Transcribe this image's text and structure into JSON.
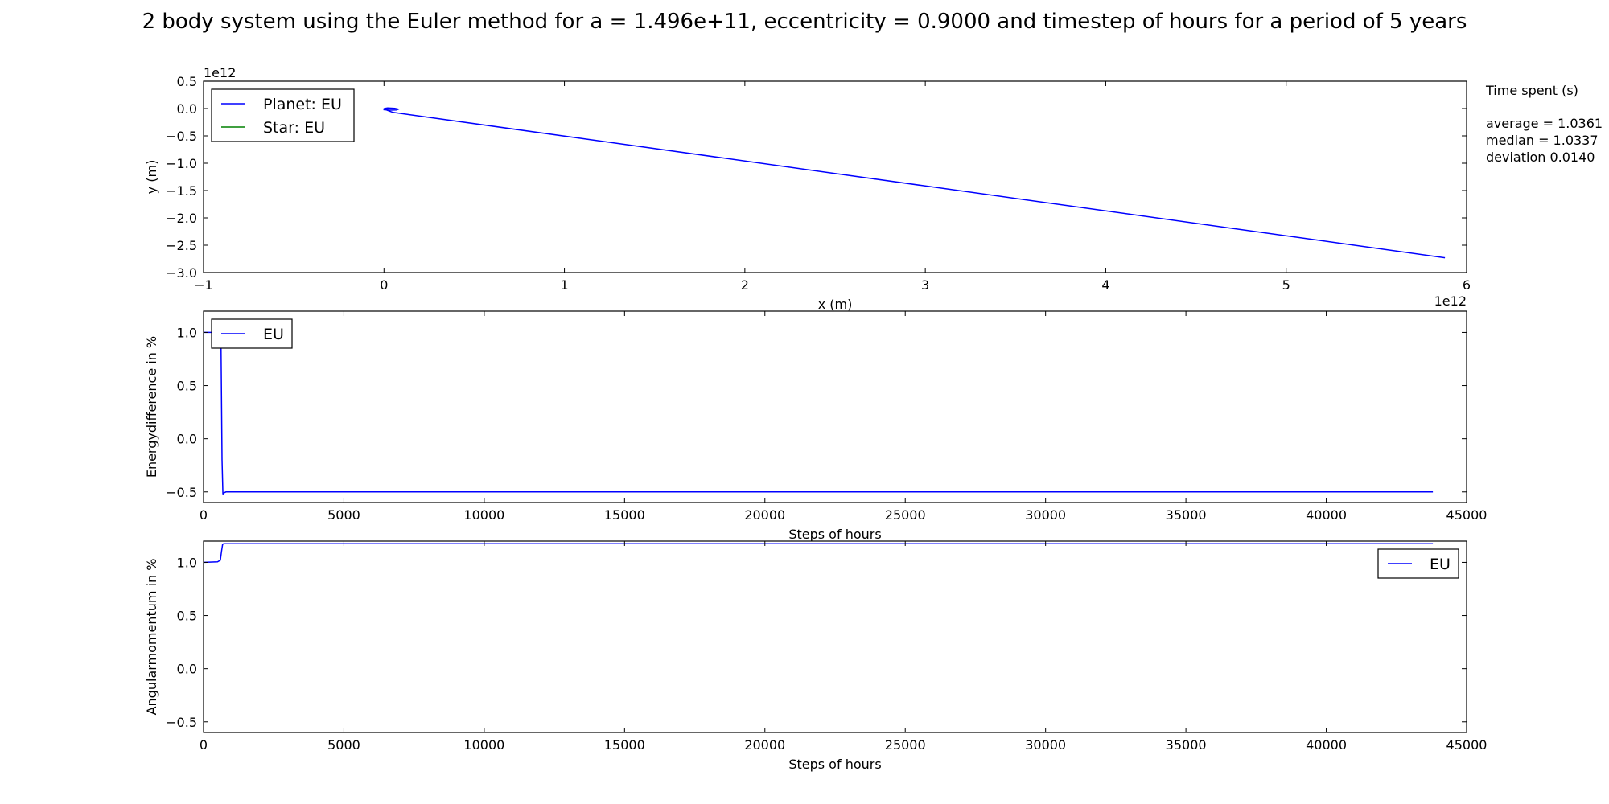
{
  "figure": {
    "title": "2 body system using the Euler method for a = 1.496e+11, eccentricity = 0.9000 and timestep of hours for a period of 5 years"
  },
  "time_panel": {
    "heading": "Time spent (s)",
    "average": "average = 1.0361",
    "median": "median = 1.0337",
    "deviation": "deviation 0.0140"
  },
  "colors": {
    "planet": "#0000ff",
    "star": "#008000",
    "eu": "#0000ff"
  },
  "chart_data": [
    {
      "type": "line",
      "title": "",
      "xlabel": "x (m)",
      "ylabel": "y (m)",
      "x_multiplier": "1e12",
      "y_multiplier": "1e12",
      "xlim": [
        -1,
        6
      ],
      "ylim": [
        -3.0,
        0.5
      ],
      "x_ticks": [
        -1,
        0,
        1,
        2,
        3,
        4,
        5,
        6
      ],
      "x_tick_labels": [
        "−1",
        "0",
        "1",
        "2",
        "3",
        "4",
        "5",
        "6"
      ],
      "y_ticks": [
        0.5,
        0.0,
        -0.5,
        -1.0,
        -1.5,
        -2.0,
        -2.5,
        -3.0
      ],
      "y_tick_labels": [
        "0.5",
        "0.0",
        "−0.5",
        "−1.0",
        "−1.5",
        "−2.0",
        "−2.5",
        "−3.0"
      ],
      "grid": false,
      "legend": "top-left",
      "series": [
        {
          "name": "Planet: EU",
          "color": "#0000ff",
          "x": [
            0.0,
            0.02,
            0.06,
            0.08,
            0.07,
            0.03,
            0.0,
            0.0,
            0.05,
            5.88
          ],
          "y": [
            0.0,
            0.01,
            0.005,
            -0.01,
            -0.025,
            -0.03,
            -0.02,
            -0.01,
            -0.07,
            -2.73
          ]
        },
        {
          "name": "Star: EU",
          "color": "#008000",
          "x": [
            0.0,
            0.0
          ],
          "y": [
            0.0,
            0.0
          ]
        }
      ]
    },
    {
      "type": "line",
      "title": "",
      "xlabel": "Steps of hours",
      "ylabel": "Energydifference in %",
      "xlim": [
        0,
        45000
      ],
      "ylim": [
        -0.6,
        1.2
      ],
      "x_ticks": [
        0,
        5000,
        10000,
        15000,
        20000,
        25000,
        30000,
        35000,
        40000,
        45000
      ],
      "x_tick_labels": [
        "0",
        "5000",
        "10000",
        "15000",
        "20000",
        "25000",
        "30000",
        "35000",
        "40000",
        "45000"
      ],
      "y_ticks": [
        1.0,
        0.5,
        0.0,
        -0.5
      ],
      "y_tick_labels": [
        "1.0",
        "0.5",
        "0.0",
        "−0.5"
      ],
      "grid": false,
      "legend": "top-left",
      "series": [
        {
          "name": "EU",
          "color": "#0000ff",
          "x": [
            0,
            620,
            660,
            690,
            720,
            800,
            1000,
            43800
          ],
          "y": [
            1.0,
            1.0,
            -0.2,
            -0.53,
            -0.51,
            -0.5,
            -0.5,
            -0.5
          ]
        }
      ]
    },
    {
      "type": "line",
      "title": "",
      "xlabel": "Steps of hours",
      "ylabel": "Angularmomentum in  %",
      "xlim": [
        0,
        45000
      ],
      "ylim": [
        -0.6,
        1.2
      ],
      "x_ticks": [
        0,
        5000,
        10000,
        15000,
        20000,
        25000,
        30000,
        35000,
        40000,
        45000
      ],
      "x_tick_labels": [
        "0",
        "5000",
        "10000",
        "15000",
        "20000",
        "25000",
        "30000",
        "35000",
        "40000",
        "45000"
      ],
      "y_ticks": [
        1.0,
        0.5,
        0.0,
        -0.5
      ],
      "y_tick_labels": [
        "1.0",
        "0.5",
        "0.0",
        "−0.5"
      ],
      "grid": false,
      "legend": "top-right",
      "series": [
        {
          "name": "EU",
          "color": "#0000ff",
          "x": [
            0,
            500,
            600,
            640,
            680,
            720,
            43800
          ],
          "y": [
            1.0,
            1.005,
            1.02,
            1.1,
            1.17,
            1.175,
            1.175
          ]
        }
      ]
    }
  ]
}
